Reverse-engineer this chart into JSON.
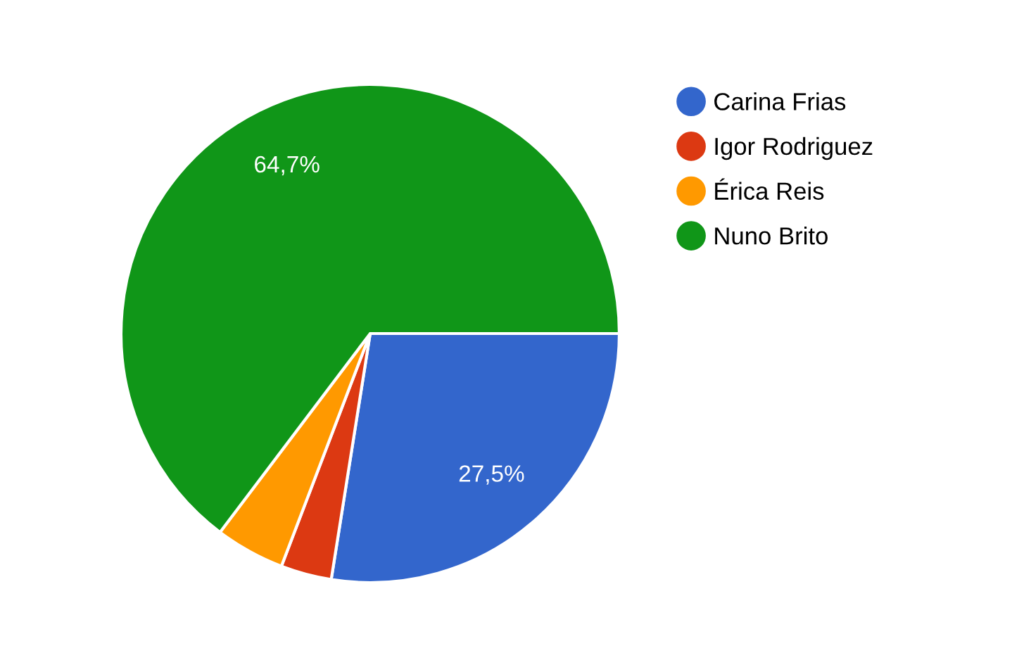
{
  "chart_data": {
    "type": "pie",
    "categories": [
      "Carina Frias",
      "Igor Rodriguez",
      "Érica Reis",
      "Nuno Brito"
    ],
    "values": [
      27.5,
      3.3,
      4.5,
      64.7
    ],
    "colors": [
      "#3366cc",
      "#dc3912",
      "#ff9900",
      "#109618"
    ],
    "value_labels": [
      "27,5%",
      null,
      null,
      "64,7%"
    ],
    "legend": "right"
  }
}
